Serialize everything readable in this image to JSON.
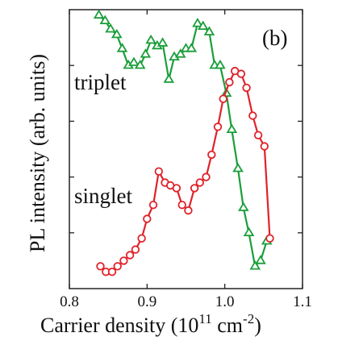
{
  "chart_data": {
    "type": "line",
    "panel_label": "(b)",
    "xlabel": "Carrier density (10",
    "xlabel_exp": "11",
    "xlabel_unit": " cm",
    "xlabel_unit_exp": "-2",
    "xlabel_close": ")",
    "ylabel": "PL intensity (arb. units)",
    "xlim": [
      0.8,
      1.1
    ],
    "ylim": [
      0,
      1
    ],
    "x_ticks": [
      0.8,
      0.9,
      1.0,
      1.1
    ],
    "x_tick_labels": [
      "0.8",
      "0.9",
      "1.0",
      "1.1"
    ],
    "y_ticks": [
      0.2,
      0.4,
      0.6,
      0.8
    ],
    "y_tick_labels": [],
    "grid": false,
    "annotations": [
      "triplet",
      "singlet"
    ],
    "series": [
      {
        "label": "triplet",
        "color": "#1a9e3a",
        "marker": "triangle",
        "x": [
          0.838,
          0.846,
          0.853,
          0.861,
          0.868,
          0.876,
          0.883,
          0.891,
          0.898,
          0.905,
          0.913,
          0.92,
          0.928,
          0.935,
          0.943,
          0.95,
          0.957,
          0.965,
          0.972,
          0.98,
          0.987,
          0.994,
          1.002,
          1.009,
          1.017,
          1.024,
          1.031,
          1.039,
          1.046,
          1.054
        ],
        "y": [
          0.98,
          0.96,
          0.93,
          0.91,
          0.86,
          0.8,
          0.81,
          0.8,
          0.84,
          0.89,
          0.87,
          0.88,
          0.75,
          0.83,
          0.84,
          0.86,
          0.86,
          0.95,
          0.94,
          0.92,
          0.8,
          0.8,
          0.7,
          0.57,
          0.43,
          0.29,
          0.2,
          0.08,
          0.1,
          0.17
        ]
      },
      {
        "label": "singlet",
        "color": "#e0222a",
        "marker": "circle",
        "x": [
          0.84,
          0.847,
          0.855,
          0.862,
          0.87,
          0.878,
          0.885,
          0.893,
          0.9,
          0.908,
          0.915,
          0.923,
          0.93,
          0.938,
          0.945,
          0.953,
          0.961,
          0.968,
          0.976,
          0.983,
          0.991,
          0.998,
          1.006,
          1.013,
          1.021,
          1.028,
          1.036,
          1.043,
          1.051,
          1.058
        ],
        "y": [
          0.08,
          0.06,
          0.06,
          0.08,
          0.1,
          0.12,
          0.14,
          0.18,
          0.25,
          0.3,
          0.42,
          0.38,
          0.37,
          0.36,
          0.3,
          0.28,
          0.36,
          0.38,
          0.4,
          0.48,
          0.58,
          0.68,
          0.74,
          0.78,
          0.77,
          0.72,
          0.62,
          0.55,
          0.51,
          0.18
        ]
      }
    ]
  }
}
